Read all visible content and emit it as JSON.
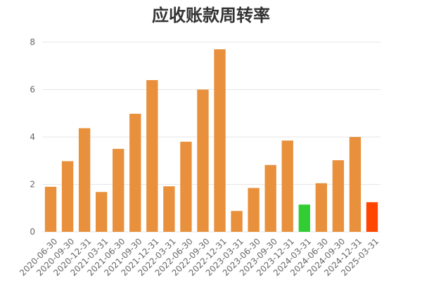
{
  "chart_data": {
    "type": "bar",
    "title": "应收账款周转率",
    "xlabel": "",
    "ylabel": "",
    "ylim": [
      0,
      8
    ],
    "yticks": [
      0,
      2,
      4,
      6,
      8
    ],
    "grid": true,
    "categories": [
      "2020-06-30",
      "2020-09-30",
      "2020-12-31",
      "2021-03-31",
      "2021-06-30",
      "2021-09-30",
      "2021-12-31",
      "2022-03-31",
      "2022-06-30",
      "2022-09-30",
      "2022-12-31",
      "2023-03-31",
      "2023-06-30",
      "2023-09-30",
      "2023-12-31",
      "2024-03-31",
      "2024-06-30",
      "2024-09-30",
      "2024-12-31",
      "2025-03-31"
    ],
    "values": [
      1.9,
      2.98,
      4.37,
      1.68,
      3.5,
      4.98,
      6.4,
      1.92,
      3.8,
      6.0,
      7.7,
      0.88,
      1.85,
      2.82,
      3.85,
      1.15,
      2.05,
      3.02,
      4.0,
      1.25
    ],
    "colors": [
      "#e8903c",
      "#e8903c",
      "#e8903c",
      "#e8903c",
      "#e8903c",
      "#e8903c",
      "#e8903c",
      "#e8903c",
      "#e8903c",
      "#e8903c",
      "#e8903c",
      "#e8903c",
      "#e8903c",
      "#e8903c",
      "#e8903c",
      "#32cd32",
      "#e8903c",
      "#e8903c",
      "#e8903c",
      "#ff4500"
    ]
  }
}
